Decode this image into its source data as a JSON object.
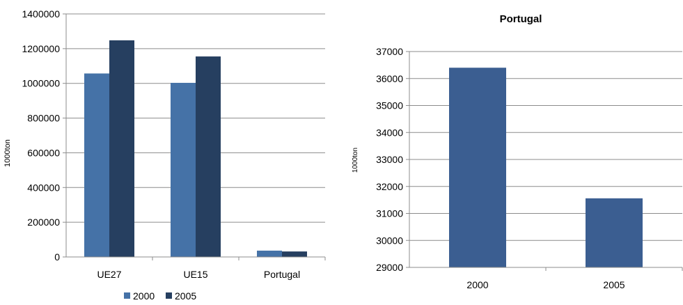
{
  "chart_data": [
    {
      "type": "bar",
      "title": "",
      "xlabel": "",
      "ylabel": "1000ton",
      "ylim": [
        0,
        1400000
      ],
      "yticks": [
        0,
        200000,
        400000,
        600000,
        800000,
        1000000,
        1200000,
        1400000
      ],
      "categories": [
        "UE27",
        "UE15",
        "Portugal"
      ],
      "series": [
        {
          "name": "2000",
          "color": "#4572A7",
          "values": [
            1057000,
            1003000,
            36400
          ]
        },
        {
          "name": "2005",
          "color": "#263F60",
          "values": [
            1248000,
            1155000,
            31600
          ]
        }
      ],
      "legend": "bottom",
      "grid": true
    },
    {
      "type": "bar",
      "title": "Portugal",
      "xlabel": "",
      "ylabel": "1000ton",
      "ylim": [
        29000,
        37000
      ],
      "yticks": [
        29000,
        30000,
        31000,
        32000,
        33000,
        34000,
        35000,
        36000,
        37000
      ],
      "categories": [
        "2000",
        "2005"
      ],
      "series": [
        {
          "color": "#3B5E91",
          "values": [
            36400,
            31560
          ]
        }
      ],
      "legend": "none",
      "grid": true
    }
  ]
}
